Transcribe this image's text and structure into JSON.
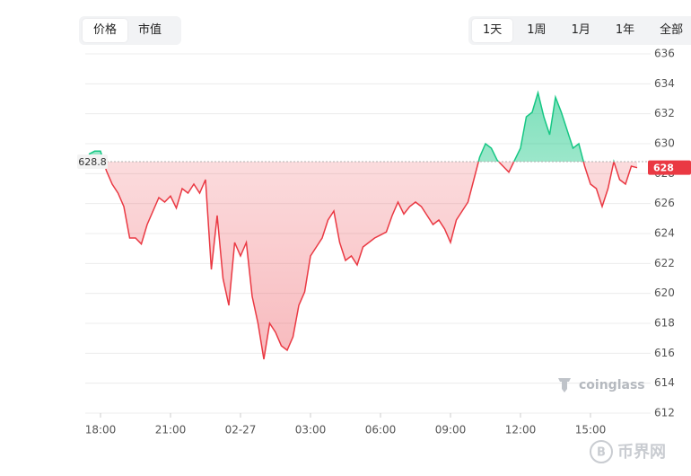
{
  "ui": {
    "metric_tabs": [
      "价格",
      "市值"
    ],
    "range_tabs": [
      "1天",
      "1周",
      "1月",
      "1年",
      "全部"
    ],
    "watermark": "coinglass",
    "footer_logo": "币界网"
  },
  "chart_data": {
    "type": "baseline",
    "x": [
      "17:30",
      "17:45",
      "18:00",
      "18:15",
      "18:30",
      "18:45",
      "19:00",
      "19:15",
      "19:30",
      "19:45",
      "20:00",
      "20:15",
      "20:30",
      "20:45",
      "21:00",
      "21:15",
      "21:30",
      "21:45",
      "22:00",
      "22:15",
      "22:30",
      "22:45",
      "23:00",
      "23:15",
      "23:30",
      "23:45",
      "02-27",
      "00:15",
      "00:30",
      "00:45",
      "01:00",
      "01:15",
      "01:30",
      "01:45",
      "02:00",
      "02:15",
      "02:30",
      "02:45",
      "03:00",
      "03:15",
      "03:30",
      "03:45",
      "04:00",
      "04:15",
      "04:30",
      "04:45",
      "05:00",
      "05:15",
      "05:30",
      "05:45",
      "06:00",
      "06:15",
      "06:30",
      "06:45",
      "07:00",
      "07:15",
      "07:30",
      "07:45",
      "08:00",
      "08:15",
      "08:30",
      "08:45",
      "09:00",
      "09:15",
      "09:30",
      "09:45",
      "10:00",
      "10:15",
      "10:30",
      "10:45",
      "11:00",
      "11:15",
      "11:30",
      "11:45",
      "12:00",
      "12:15",
      "12:30",
      "12:45",
      "13:00",
      "13:15",
      "13:30",
      "13:45",
      "14:00",
      "14:15",
      "14:30",
      "14:45",
      "15:00",
      "15:15",
      "15:30",
      "15:45",
      "16:00",
      "16:15",
      "16:30",
      "16:45",
      "17:00"
    ],
    "values": [
      629.3,
      629.5,
      629.5,
      628.2,
      627.3,
      626.7,
      625.8,
      623.7,
      623.7,
      623.3,
      624.6,
      625.5,
      626.4,
      626.1,
      626.5,
      625.7,
      627.0,
      626.7,
      627.3,
      626.7,
      627.6,
      621.6,
      625.2,
      621.0,
      619.2,
      623.4,
      622.5,
      623.4,
      619.8,
      618.0,
      615.6,
      618.0,
      617.4,
      616.5,
      616.2,
      617.1,
      619.2,
      620.1,
      622.5,
      623.1,
      623.7,
      624.9,
      625.5,
      623.4,
      622.2,
      622.5,
      621.9,
      623.1,
      623.4,
      623.7,
      623.9,
      624.1,
      625.2,
      626.1,
      625.3,
      625.8,
      626.1,
      625.8,
      625.2,
      624.6,
      624.9,
      624.3,
      623.4,
      624.9,
      625.5,
      626.1,
      627.6,
      629.1,
      630.0,
      629.7,
      628.9,
      628.5,
      628.1,
      628.9,
      629.7,
      631.8,
      632.1,
      633.4,
      631.8,
      630.6,
      633.1,
      632.1,
      630.9,
      629.7,
      630.0,
      628.5,
      627.3,
      627.0,
      625.8,
      627.0,
      628.8,
      627.6,
      627.3,
      628.5,
      628.4
    ],
    "baseline": 628.8,
    "last_price": {
      "value": 628.4,
      "label": "628"
    },
    "up_color": "#16c784",
    "down_color": "#ea3943",
    "ylim": [
      612,
      636
    ],
    "yticks": [
      612,
      614,
      616,
      618,
      620,
      622,
      624,
      626,
      628,
      630,
      632,
      634,
      636
    ],
    "xticks": [
      "18:00",
      "21:00",
      "02-27",
      "03:00",
      "06:00",
      "09:00",
      "12:00",
      "15:00"
    ],
    "grid": true
  }
}
